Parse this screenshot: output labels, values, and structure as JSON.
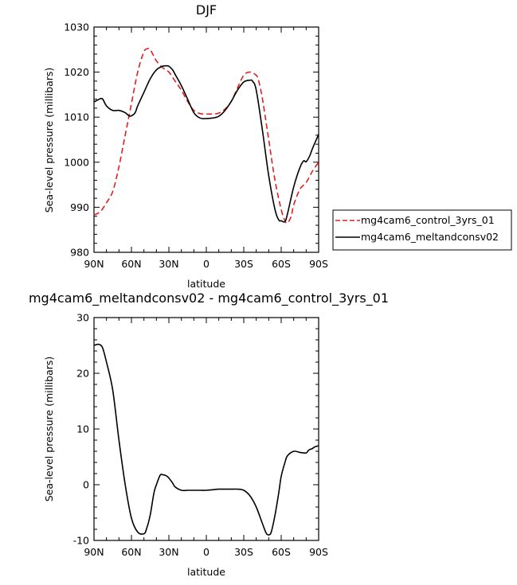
{
  "chart_data": [
    {
      "type": "line",
      "title": "DJF",
      "xlabel": "latitude",
      "ylabel": "Sea-level pressure (millibars)",
      "xticks": [
        "90N",
        "60N",
        "30N",
        "0",
        "30S",
        "60S",
        "90S"
      ],
      "xlim": [
        90,
        -90
      ],
      "ylim": [
        980,
        1030
      ],
      "yticks": [
        980,
        990,
        1000,
        1010,
        1020,
        1030
      ],
      "legend_position": "right",
      "series": [
        {
          "name": "mg4cam6_control_3yrs_01",
          "color": "#e02020",
          "dash": "dashed",
          "x": [
            90,
            85,
            80,
            75,
            70,
            65,
            60,
            55,
            50,
            47,
            45,
            42,
            40,
            35,
            30,
            25,
            20,
            15,
            10,
            5,
            0,
            -5,
            -10,
            -15,
            -20,
            -25,
            -30,
            -35,
            -40,
            -42,
            -45,
            -50,
            -55,
            -60,
            -63,
            -65,
            -68,
            -70,
            -75,
            -80,
            -85,
            -90
          ],
          "y": [
            988.3,
            989,
            991,
            993.5,
            999,
            1006,
            1013,
            1020,
            1024.5,
            1025.2,
            1025,
            1023.5,
            1022.5,
            1021,
            1020,
            1018,
            1016,
            1013.5,
            1011.5,
            1010.8,
            1010.7,
            1010.7,
            1010.9,
            1011.8,
            1013.5,
            1016.5,
            1019.3,
            1020,
            1019.3,
            1018,
            1014,
            1005,
            996,
            989.5,
            987,
            986.5,
            988,
            990.5,
            994,
            995.5,
            998,
            1000
          ]
        },
        {
          "name": "mg4cam6_meltandconsv02",
          "color": "#000000",
          "dash": "solid",
          "x": [
            90,
            87,
            85,
            83,
            80,
            75,
            70,
            65,
            62,
            60,
            57,
            55,
            50,
            45,
            40,
            35,
            32,
            30,
            27,
            25,
            20,
            15,
            10,
            5,
            0,
            -5,
            -10,
            -15,
            -20,
            -25,
            -30,
            -35,
            -37,
            -40,
            -45,
            -50,
            -55,
            -58,
            -60,
            -63,
            -65,
            -70,
            -75,
            -78,
            -80,
            -83,
            -85,
            -90
          ],
          "y": [
            1013.4,
            1013.8,
            1014.1,
            1014,
            1012.5,
            1011.5,
            1011.5,
            1011,
            1010.3,
            1010.3,
            1011,
            1012.5,
            1015.5,
            1018.5,
            1020.5,
            1021.3,
            1021.4,
            1021.3,
            1020.5,
            1019.5,
            1017,
            1014,
            1011,
            1009.8,
            1009.7,
            1009.8,
            1010.2,
            1011.5,
            1013.5,
            1016,
            1017.8,
            1018.2,
            1018,
            1016,
            1007,
            997,
            989.5,
            987.2,
            987,
            986.8,
            988.5,
            994.5,
            998.8,
            1000.3,
            1000.1,
            1001.5,
            1003,
            1006.2
          ]
        }
      ]
    },
    {
      "type": "line",
      "title": "mg4cam6_meltandconsv02 - mg4cam6_control_3yrs_01",
      "xlabel": "latitude",
      "ylabel": "Sea-level pressure (millibars)",
      "xticks": [
        "90N",
        "60N",
        "30N",
        "0",
        "30S",
        "60S",
        "90S"
      ],
      "xlim": [
        90,
        -90
      ],
      "ylim": [
        -10,
        30
      ],
      "yticks": [
        -10,
        0,
        10,
        20,
        30
      ],
      "series": [
        {
          "color": "#000000",
          "dash": "solid",
          "x": [
            90,
            87,
            85,
            83,
            80,
            75,
            70,
            65,
            60,
            55,
            50,
            48,
            45,
            42,
            40,
            37,
            35,
            32,
            30,
            27,
            25,
            20,
            15,
            10,
            5,
            0,
            -5,
            -10,
            -15,
            -20,
            -25,
            -30,
            -35,
            -40,
            -45,
            -48,
            -50,
            -52,
            -55,
            -58,
            -60,
            -63,
            -65,
            -70,
            -75,
            -80,
            -82,
            -85,
            -87,
            -90
          ],
          "y": [
            25,
            25.2,
            25.1,
            24.5,
            22,
            17,
            8,
            0,
            -6,
            -8.5,
            -8.8,
            -8,
            -5.5,
            -1.5,
            0,
            1.7,
            1.8,
            1.6,
            1.2,
            0.3,
            -0.4,
            -1,
            -1,
            -1,
            -1,
            -1,
            -0.9,
            -0.8,
            -0.8,
            -0.8,
            -0.8,
            -1,
            -2,
            -4,
            -7,
            -8.7,
            -9,
            -8.5,
            -5.5,
            -1.5,
            1.5,
            4,
            5.2,
            6,
            5.8,
            5.7,
            6.2,
            6.5,
            6.8,
            7
          ]
        }
      ]
    }
  ],
  "legend": {
    "items": [
      "mg4cam6_control_3yrs_01",
      "mg4cam6_meltandconsv02"
    ]
  }
}
